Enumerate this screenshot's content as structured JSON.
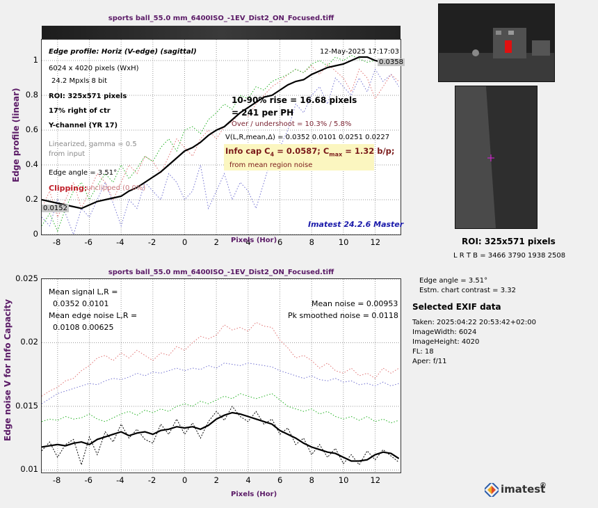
{
  "top_chart": {
    "title": "sports ball_55.0 mm_6400ISO_-1EV_Dist2_ON_Focused.tiff",
    "xlabel": "Pixels (Hor)",
    "ylabel": "Edge profile (linear)",
    "ann": {
      "heading": "Edge profile: Horiz (V-edge) (sagittal)",
      "date": "12-May-2025 17:17:03",
      "size": "6024 x 4020 pixels (WxH)",
      "mpxls": "24.2 Mpxls   8 bit",
      "roi": "ROI:  325x571 pixels",
      "pos": "17% right of ctr",
      "channel": "Y-channel  (YR 17)",
      "lin1": "Linearized, gamma = 0.5",
      "lin2": "from input",
      "angle": "Edge angle = 3.51°",
      "clip_label": "Clipping:",
      "clip_val": "unclipped (0.0%)",
      "rise1": "10-90% rise = 16.68 pixels",
      "rise2": "=   241 per PH",
      "over": "Over / undershoot = 10.3% /  5.8%",
      "vlr": "V(L,R,mean,Δ) = 0.0352  0.0101  0.0251  0.0227",
      "info": "Info cap C",
      "info_sub": "4",
      "info_val": " = 0.0587;  C",
      "info_sub2": "max",
      "info_val2": " = 1.32 b/p;",
      "info_note": "from mean region noise",
      "box_hi": "0.0358",
      "box_lo": "0.0152",
      "version": "Imatest 24.2.6 Master"
    }
  },
  "bottom_chart": {
    "title": "sports ball_55.0 mm_6400ISO_-1EV_Dist2_ON_Focused.tiff",
    "xlabel": "Pixels (Hor)",
    "ylabel": "Edge noise V for Info Capacity",
    "ann": {
      "ms": "Mean signal L,R =",
      "ms_v": "0.0352  0.0101",
      "men": "Mean edge noise L,R =",
      "men_v": "0.0108  0.00625",
      "mn": "Mean noise = 0.00953",
      "pk": "Pk smoothed noise = 0.0118"
    }
  },
  "right": {
    "roi": "ROI:  325x571 pixels",
    "lrtb": "L R  T B = 3466 3790  1938 2508",
    "angle": "Edge angle = 3.51°",
    "contrast": "Estm. chart contrast = 3.32",
    "exif_title": "Selected EXIF data",
    "exif": [
      "Taken: 2025:04:22 20:53:42+02:00",
      "ImageWidth:  6024",
      "ImageHeight:  4020",
      "FL:   18",
      "Aper:  f/11"
    ],
    "logo": "imatest"
  },
  "chart_data": [
    {
      "type": "line",
      "title": "sports ball_55.0 mm_6400ISO_-1EV_Dist2_ON_Focused.tiff",
      "xlabel": "Pixels (Hor)",
      "ylabel": "Edge profile (linear)",
      "xlim": [
        -9,
        13.6
      ],
      "ylim": [
        0,
        1.12
      ],
      "xticks": [
        -8,
        -6,
        -4,
        -2,
        0,
        2,
        4,
        6,
        8,
        10,
        12
      ],
      "yticks": [
        0,
        0.2,
        0.4,
        0.6,
        0.8,
        1
      ],
      "grid": true,
      "x": [
        -9,
        -8.5,
        -8,
        -7.5,
        -7,
        -6.5,
        -6,
        -5.5,
        -5,
        -4.5,
        -4,
        -3.5,
        -3,
        -2.5,
        -2,
        -1.5,
        -1,
        -0.5,
        0,
        0.5,
        1,
        1.5,
        2,
        2.5,
        3,
        3.5,
        4,
        4.5,
        5,
        5.5,
        6,
        6.5,
        7,
        7.5,
        8,
        8.5,
        9,
        9.5,
        10,
        10.5,
        11,
        11.5,
        12,
        12.5,
        13,
        13.5
      ],
      "series": [
        {
          "values": [
            0.2,
            0.19,
            0.18,
            0.17,
            0.16,
            0.15,
            0.17,
            0.19,
            0.2,
            0.21,
            0.22,
            0.25,
            0.27,
            0.3,
            0.33,
            0.36,
            0.4,
            0.44,
            0.48,
            0.5,
            0.53,
            0.57,
            0.6,
            0.62,
            0.66,
            0.7,
            0.73,
            0.76,
            0.79,
            0.8,
            0.83,
            0.86,
            0.88,
            0.89,
            0.92,
            0.94,
            0.96,
            0.97,
            0.98,
            1.0,
            1.02,
            1.02,
            1.0,
            0.99,
            1.0,
            0.98
          ]
        },
        {
          "values": [
            0.05,
            0.12,
            0.02,
            0.15,
            0.25,
            0.3,
            0.2,
            0.28,
            0.35,
            0.3,
            0.4,
            0.32,
            0.38,
            0.45,
            0.42,
            0.5,
            0.55,
            0.48,
            0.6,
            0.62,
            0.58,
            0.66,
            0.7,
            0.75,
            0.72,
            0.8,
            0.78,
            0.85,
            0.83,
            0.88,
            0.9,
            0.92,
            0.95,
            0.93,
            0.98,
            1.0,
            0.97,
            1.02,
            1.0,
            1.03,
            1.01,
            0.99,
            1.0,
            0.98,
            1.0,
            0.97
          ]
        },
        {
          "values": [
            0.15,
            0.25,
            0.1,
            0.2,
            0.3,
            0.15,
            0.25,
            0.35,
            0.3,
            0.2,
            0.3,
            0.4,
            0.35,
            0.45,
            0.42,
            0.35,
            0.45,
            0.55,
            0.5,
            0.45,
            0.55,
            0.6,
            0.55,
            0.62,
            0.65,
            0.7,
            0.68,
            0.75,
            0.8,
            0.85,
            0.88,
            0.92,
            0.95,
            0.93,
            0.97,
            0.92,
            0.98,
            0.94,
            0.9,
            0.82,
            0.95,
            0.9,
            0.78,
            0.85,
            0.92,
            0.88
          ]
        },
        {
          "values": [
            0.1,
            0.05,
            0.2,
            0.12,
            0.0,
            0.15,
            0.1,
            0.2,
            0.3,
            0.18,
            0.05,
            0.2,
            0.15,
            0.3,
            0.25,
            0.2,
            0.35,
            0.3,
            0.2,
            0.25,
            0.4,
            0.15,
            0.25,
            0.35,
            0.2,
            0.3,
            0.25,
            0.15,
            0.3,
            0.45,
            0.5,
            0.6,
            0.75,
            0.7,
            0.8,
            0.85,
            0.75,
            0.9,
            0.85,
            0.8,
            0.9,
            0.82,
            0.95,
            0.88,
            0.92,
            0.85
          ]
        }
      ]
    },
    {
      "type": "line",
      "title": "sports ball_55.0 mm_6400ISO_-1EV_Dist2_ON_Focused.tiff",
      "xlabel": "Pixels (Hor)",
      "ylabel": "Edge noise V for Info Capacity",
      "xlim": [
        -9,
        13.6
      ],
      "ylim": [
        0.0098,
        0.025
      ],
      "xticks": [
        -8,
        -6,
        -4,
        -2,
        0,
        2,
        4,
        6,
        8,
        10,
        12
      ],
      "yticks": [
        0.01,
        0.015,
        0.02,
        0.025
      ],
      "grid": true,
      "x": [
        -9,
        -8.5,
        -8,
        -7.5,
        -7,
        -6.5,
        -6,
        -5.5,
        -5,
        -4.5,
        -4,
        -3.5,
        -3,
        -2.5,
        -2,
        -1.5,
        -1,
        -0.5,
        0,
        0.5,
        1,
        1.5,
        2,
        2.5,
        3,
        3.5,
        4,
        4.5,
        5,
        5.5,
        6,
        6.5,
        7,
        7.5,
        8,
        8.5,
        9,
        9.5,
        10,
        10.5,
        11,
        11.5,
        12,
        12.5,
        13,
        13.5
      ],
      "series": [
        {
          "values": [
            0.0118,
            0.0119,
            0.012,
            0.0119,
            0.0121,
            0.0122,
            0.012,
            0.0124,
            0.0126,
            0.0128,
            0.013,
            0.0127,
            0.0129,
            0.013,
            0.0128,
            0.0131,
            0.0132,
            0.0134,
            0.0133,
            0.0134,
            0.0132,
            0.0135,
            0.014,
            0.0143,
            0.0145,
            0.0144,
            0.0142,
            0.014,
            0.0138,
            0.0136,
            0.0131,
            0.0128,
            0.0125,
            0.0121,
            0.0118,
            0.0116,
            0.0114,
            0.0113,
            0.011,
            0.0107,
            0.0107,
            0.0108,
            0.0112,
            0.0114,
            0.0113,
            0.0109
          ]
        },
        {
          "values": [
            0.0115,
            0.0122,
            0.011,
            0.012,
            0.0124,
            0.0104,
            0.0126,
            0.0112,
            0.013,
            0.0122,
            0.0136,
            0.0125,
            0.0132,
            0.0124,
            0.0121,
            0.0136,
            0.0128,
            0.014,
            0.0128,
            0.0137,
            0.0125,
            0.0138,
            0.0146,
            0.0139,
            0.015,
            0.0142,
            0.0138,
            0.0146,
            0.0136,
            0.014,
            0.0128,
            0.0133,
            0.012,
            0.0125,
            0.0112,
            0.012,
            0.011,
            0.0117,
            0.0105,
            0.0112,
            0.0104,
            0.0115,
            0.0108,
            0.0116,
            0.0111,
            0.0106
          ]
        },
        {
          "values": [
            0.0158,
            0.0162,
            0.0165,
            0.017,
            0.0172,
            0.0178,
            0.0182,
            0.0188,
            0.019,
            0.0186,
            0.0192,
            0.0188,
            0.0194,
            0.019,
            0.0186,
            0.0192,
            0.019,
            0.0197,
            0.0194,
            0.02,
            0.0205,
            0.0203,
            0.0206,
            0.0214,
            0.021,
            0.0212,
            0.0209,
            0.0216,
            0.0213,
            0.0212,
            0.0202,
            0.0196,
            0.0188,
            0.019,
            0.0186,
            0.018,
            0.0184,
            0.0178,
            0.0176,
            0.018,
            0.0174,
            0.0176,
            0.0172,
            0.018,
            0.0176,
            0.018
          ]
        },
        {
          "values": [
            0.0138,
            0.014,
            0.0139,
            0.0142,
            0.014,
            0.0141,
            0.0144,
            0.014,
            0.0138,
            0.0141,
            0.0144,
            0.0146,
            0.0143,
            0.0147,
            0.0145,
            0.0148,
            0.0146,
            0.015,
            0.0152,
            0.015,
            0.0154,
            0.0152,
            0.0155,
            0.0158,
            0.0156,
            0.016,
            0.0158,
            0.0156,
            0.0158,
            0.016,
            0.0155,
            0.015,
            0.0148,
            0.0146,
            0.0148,
            0.0144,
            0.0146,
            0.0142,
            0.014,
            0.0142,
            0.0139,
            0.0142,
            0.0138,
            0.014,
            0.0137,
            0.0139
          ]
        },
        {
          "values": [
            0.0152,
            0.0156,
            0.016,
            0.0162,
            0.0164,
            0.0166,
            0.0168,
            0.0167,
            0.017,
            0.0172,
            0.0171,
            0.0173,
            0.0176,
            0.0174,
            0.0177,
            0.0176,
            0.0178,
            0.018,
            0.0178,
            0.018,
            0.0179,
            0.0182,
            0.018,
            0.0184,
            0.0183,
            0.0182,
            0.0184,
            0.0183,
            0.0182,
            0.0181,
            0.0178,
            0.0176,
            0.0174,
            0.0172,
            0.0174,
            0.0171,
            0.017,
            0.0172,
            0.0169,
            0.017,
            0.0167,
            0.0168,
            0.0166,
            0.0169,
            0.0166,
            0.0168
          ]
        }
      ]
    }
  ]
}
